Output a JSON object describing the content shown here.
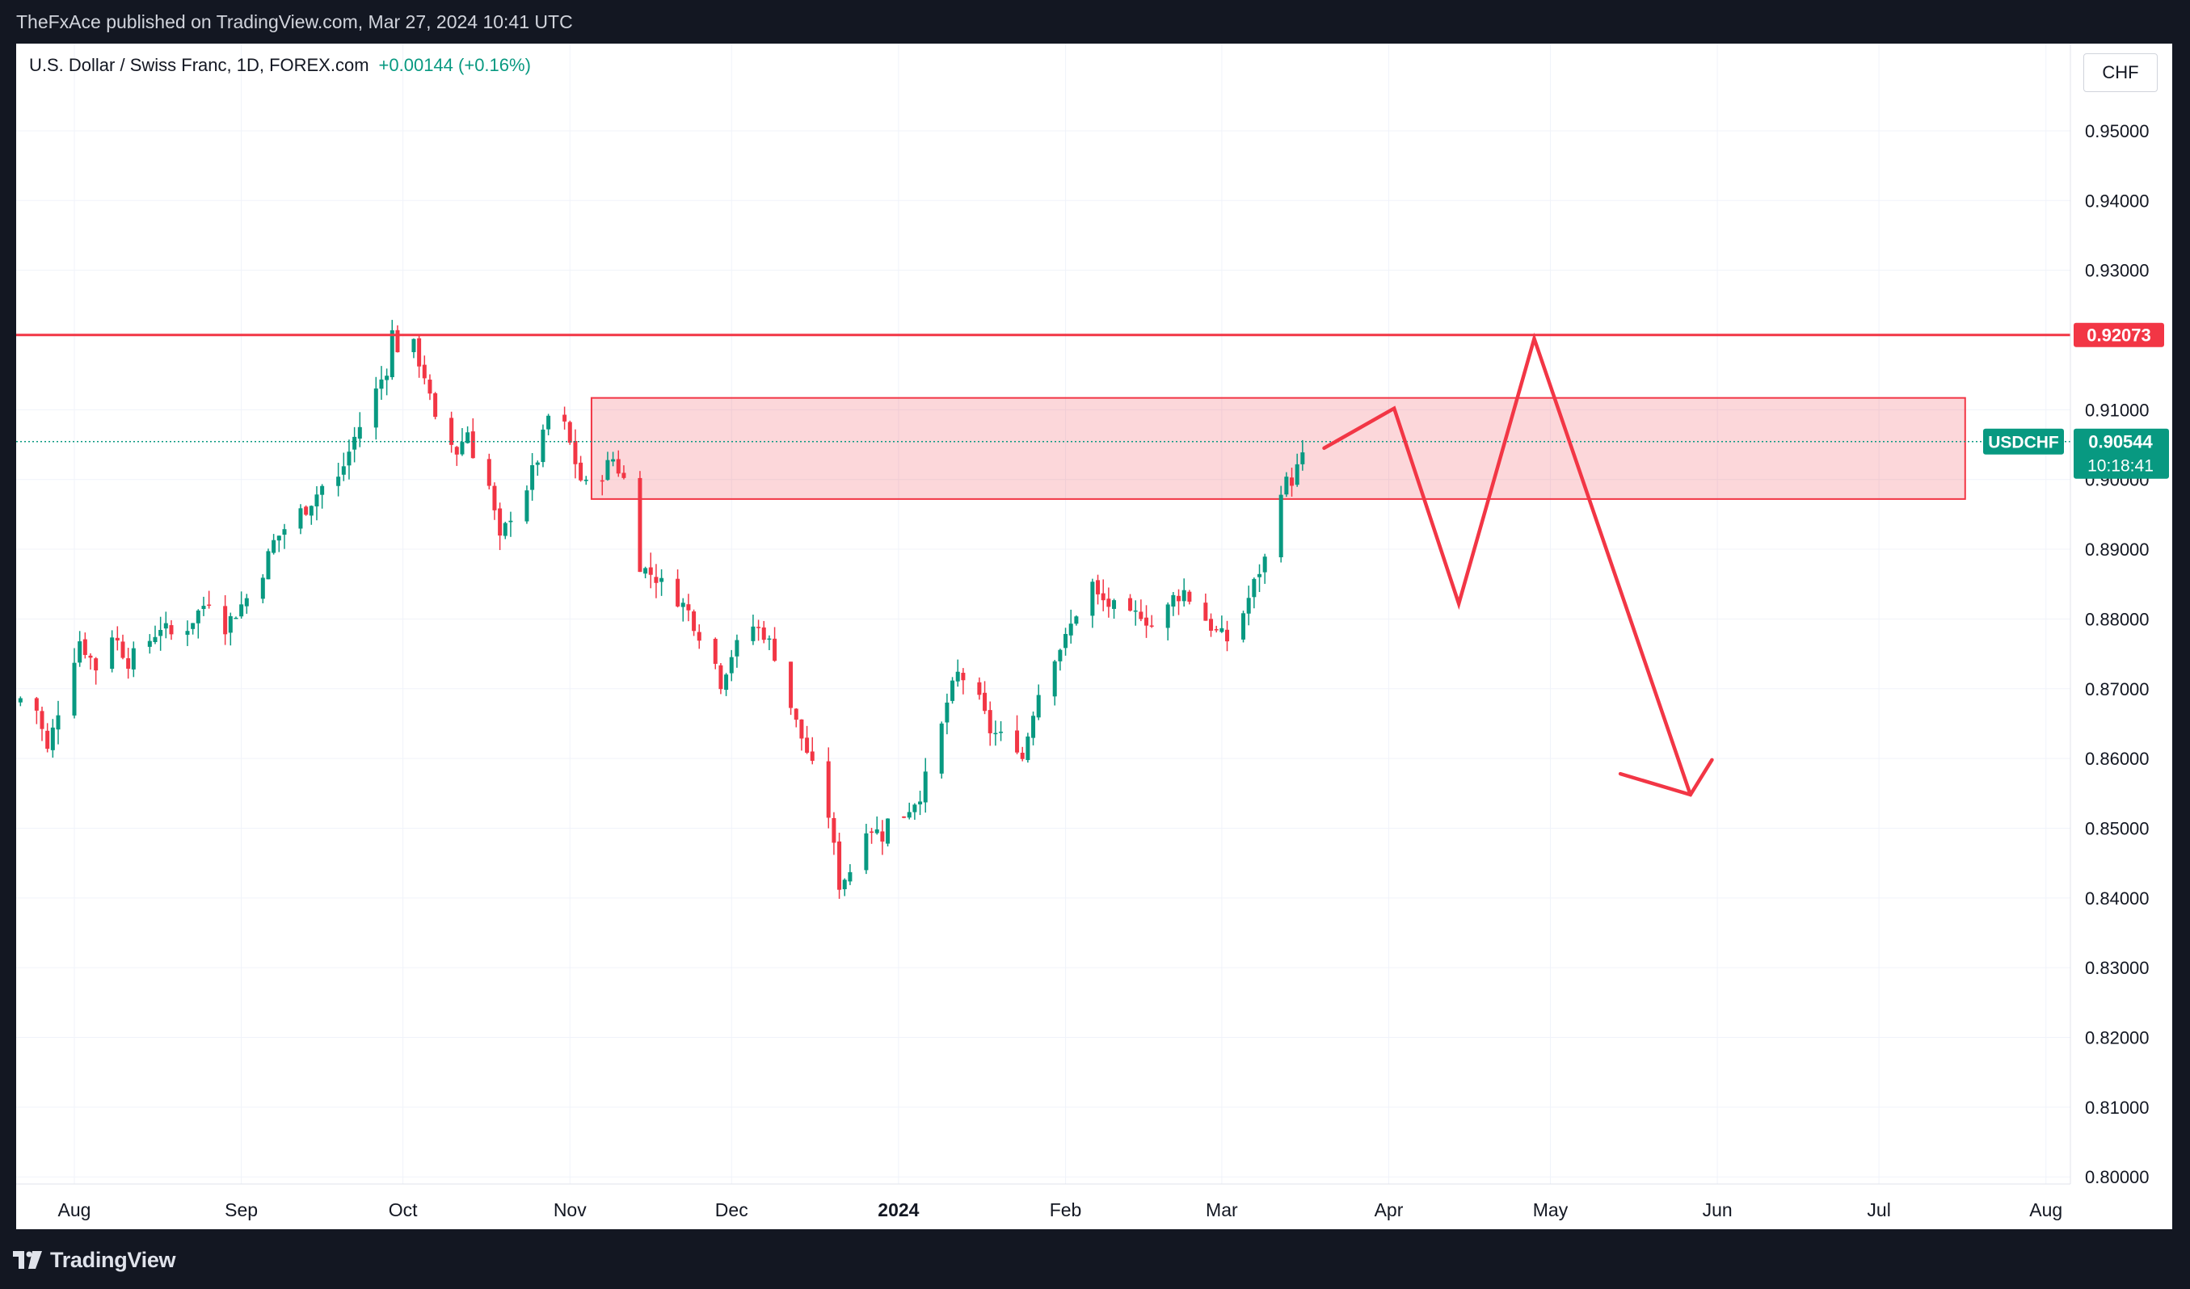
{
  "header": {
    "published_text": "TheFxAce published on TradingView.com, Mar 27, 2024 10:41 UTC"
  },
  "legend": {
    "title": "U.S. Dollar / Swiss Franc, 1D, FOREX.com",
    "change": "+0.00144 (+0.16%)"
  },
  "currency": "CHF",
  "footer": {
    "brand": "TradingView"
  },
  "colors": {
    "up": "#089981",
    "down": "#f23645",
    "zone_fill": "#f23645",
    "grid": "#f0f3fa"
  },
  "chart_data": {
    "type": "candlestick",
    "symbol": "USDCHF",
    "ylim": [
      0.7925,
      0.9625
    ],
    "y_ticks": [
      "0.95000",
      "0.94000",
      "0.93000",
      "0.91000",
      "0.90000",
      "0.89000",
      "0.88000",
      "0.87000",
      "0.86000",
      "0.85000",
      "0.84000",
      "0.83000",
      "0.82000",
      "0.81000",
      "0.80000"
    ],
    "x_ticks": [
      "Aug",
      "Sep",
      "Oct",
      "Nov",
      "Dec",
      "2024",
      "Feb",
      "Mar",
      "Apr",
      "May",
      "Jun",
      "Jul",
      "Aug"
    ],
    "x_tick_days": [
      0,
      31,
      61,
      92,
      122,
      153,
      184,
      213,
      244,
      274,
      305,
      335,
      366
    ],
    "resistance": {
      "price": 0.92073,
      "label": "0.92073"
    },
    "last_price": {
      "price": 0.90544,
      "label": "0.90544",
      "symbol_label": "USDCHF",
      "countdown": "10:18:41"
    },
    "zone": {
      "from_day": 96,
      "to_day": 351,
      "low": 0.8972,
      "high": 0.9117
    },
    "projection_path": [
      [
        2,
        0.9045
      ],
      [
        245,
        0.9102
      ],
      [
        257,
        0.8822
      ],
      [
        271,
        0.9202
      ],
      [
        300,
        0.8548
      ]
    ],
    "arrow_head": [
      [
        287,
        0.8578
      ],
      [
        300,
        0.8548
      ],
      [
        304,
        0.8598
      ]
    ],
    "anchors": [
      [
        -11,
        0.868
      ],
      [
        -8,
        0.87
      ],
      [
        -5,
        0.861
      ],
      [
        -2,
        0.87
      ],
      [
        1,
        0.877
      ],
      [
        4,
        0.873
      ],
      [
        7,
        0.878
      ],
      [
        10,
        0.874
      ],
      [
        13,
        0.876
      ],
      [
        16,
        0.879
      ],
      [
        19,
        0.877
      ],
      [
        22,
        0.88
      ],
      [
        25,
        0.883
      ],
      [
        28,
        0.879
      ],
      [
        31,
        0.882
      ],
      [
        34,
        0.885
      ],
      [
        37,
        0.891
      ],
      [
        40,
        0.894
      ],
      [
        43,
        0.896
      ],
      [
        46,
        0.899
      ],
      [
        49,
        0.9
      ],
      [
        52,
        0.906
      ],
      [
        55,
        0.911
      ],
      [
        58,
        0.916
      ],
      [
        59,
        0.921
      ],
      [
        61,
        0.917
      ],
      [
        63,
        0.919
      ],
      [
        65,
        0.915
      ],
      [
        67,
        0.908
      ],
      [
        69,
        0.906
      ],
      [
        71,
        0.904
      ],
      [
        73,
        0.907
      ],
      [
        75,
        0.901
      ],
      [
        77,
        0.899
      ],
      [
        79,
        0.891
      ],
      [
        81,
        0.895
      ],
      [
        83,
        0.897
      ],
      [
        86,
        0.903
      ],
      [
        88,
        0.909
      ],
      [
        90,
        0.91
      ],
      [
        92,
        0.905
      ],
      [
        94,
        0.9
      ],
      [
        96,
        0.898
      ],
      [
        98,
        0.901
      ],
      [
        100,
        0.903
      ],
      [
        102,
        0.9
      ],
      [
        104,
        0.889
      ],
      [
        106,
        0.887
      ],
      [
        108,
        0.886
      ],
      [
        110,
        0.884
      ],
      [
        112,
        0.883
      ],
      [
        114,
        0.881
      ],
      [
        116,
        0.878
      ],
      [
        118,
        0.876
      ],
      [
        120,
        0.871
      ],
      [
        122,
        0.875
      ],
      [
        124,
        0.877
      ],
      [
        126,
        0.879
      ],
      [
        128,
        0.878
      ],
      [
        130,
        0.875
      ],
      [
        132,
        0.87
      ],
      [
        134,
        0.865
      ],
      [
        136,
        0.861
      ],
      [
        138,
        0.856
      ],
      [
        140,
        0.852
      ],
      [
        142,
        0.842
      ],
      [
        144,
        0.844
      ],
      [
        146,
        0.851
      ],
      [
        148,
        0.85
      ],
      [
        150,
        0.849
      ],
      [
        152,
        0.853
      ],
      [
        154,
        0.852
      ],
      [
        157,
        0.855
      ],
      [
        160,
        0.861
      ],
      [
        162,
        0.868
      ],
      [
        164,
        0.872
      ],
      [
        166,
        0.871
      ],
      [
        168,
        0.868
      ],
      [
        170,
        0.864
      ],
      [
        172,
        0.863
      ],
      [
        174,
        0.864
      ],
      [
        176,
        0.86
      ],
      [
        178,
        0.867
      ],
      [
        180,
        0.872
      ],
      [
        182,
        0.875
      ],
      [
        184,
        0.877
      ],
      [
        186,
        0.881
      ],
      [
        188,
        0.887
      ],
      [
        190,
        0.883
      ],
      [
        192,
        0.882
      ],
      [
        194,
        0.881
      ],
      [
        196,
        0.88
      ],
      [
        198,
        0.881
      ],
      [
        200,
        0.879
      ],
      [
        202,
        0.88
      ],
      [
        204,
        0.883
      ],
      [
        206,
        0.884
      ],
      [
        208,
        0.882
      ],
      [
        210,
        0.88
      ],
      [
        212,
        0.878
      ],
      [
        214,
        0.877
      ],
      [
        216,
        0.879
      ],
      [
        218,
        0.883
      ],
      [
        220,
        0.887
      ],
      [
        222,
        0.89
      ],
      [
        224,
        0.899
      ],
      [
        226,
        0.9
      ],
      [
        228,
        0.903
      ],
      [
        230,
        0.9054
      ]
    ]
  }
}
